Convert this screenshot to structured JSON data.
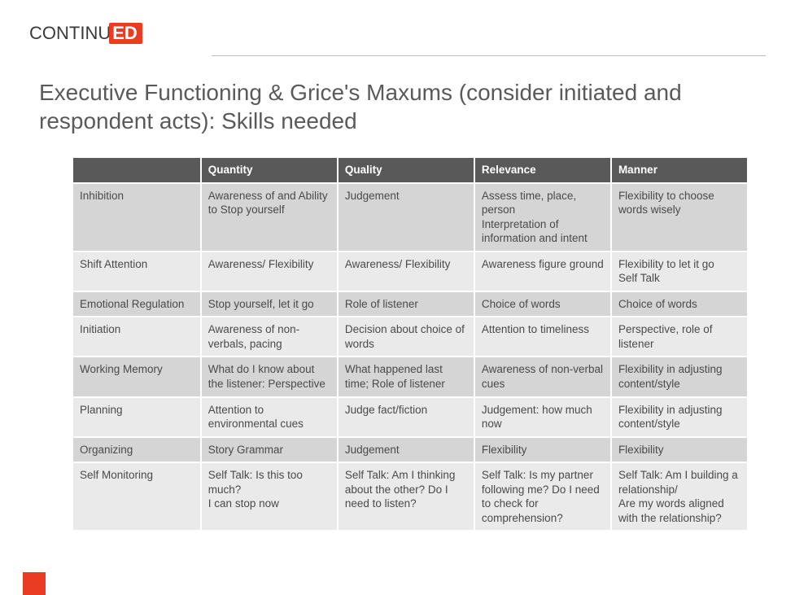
{
  "logo": {
    "part1": "continu",
    "part2": "ed"
  },
  "title": "Executive Functioning & Grice's Maxums (consider initiated and respondent acts): Skills needed",
  "colors": {
    "accent": "#e93c23",
    "header_bg": "#595959",
    "header_fg": "#ffffff",
    "row_dark": "#d5d5d5",
    "row_light": "#eaeaea",
    "text": "#4a4a4a",
    "title_color": "#5a5a5a",
    "rule": "#bdbdbd",
    "background": "#ffffff"
  },
  "table": {
    "type": "table",
    "col_widths_pct": [
      19,
      20.25,
      20.25,
      20.25,
      20.25
    ],
    "columns": [
      "",
      "Quantity",
      "Quality",
      "Relevance",
      "Manner"
    ],
    "header_fontsize": 13.5,
    "cell_fontsize": 13.5,
    "row_shades": [
      "dark",
      "light",
      "dark",
      "light",
      "dark",
      "light",
      "dark",
      "light"
    ],
    "rows": [
      [
        "Inhibition",
        "Awareness of and Ability to Stop yourself",
        "Judgement",
        "Assess time, place, person\nInterpretation of information and intent",
        "Flexibility to choose words wisely"
      ],
      [
        "Shift Attention",
        "Awareness/ Flexibility",
        "Awareness/ Flexibility",
        "Awareness figure ground",
        "Flexibility to let it go\nSelf Talk"
      ],
      [
        "Emotional Regulation",
        "Stop yourself, let it go",
        "Role of listener",
        "Choice of words",
        "Choice of words"
      ],
      [
        "Initiation",
        "Awareness of non-verbals, pacing",
        "Decision about choice of words",
        "Attention to timeliness",
        "Perspective, role of listener"
      ],
      [
        "Working Memory",
        "What do I know about the listener: Perspective",
        "What happened last time; Role of listener",
        "Awareness of non-verbal cues",
        "Flexibility in adjusting content/style"
      ],
      [
        "Planning",
        "Attention to environmental cues",
        "Judge fact/fiction",
        "Judgement: how much now",
        "Flexibility in adjusting content/style"
      ],
      [
        "Organizing",
        "Story Grammar",
        "Judgement",
        "Flexibility",
        "Flexibility"
      ],
      [
        "Self Monitoring",
        "Self Talk: Is this too much?\nI can stop now",
        "Self Talk: Am I thinking about the other? Do I need to listen?",
        "Self Talk:  Is my partner following me? Do I need to check for comprehension?",
        "Self Talk: Am I building a relationship/\nAre my words aligned with the relationship?"
      ]
    ]
  }
}
